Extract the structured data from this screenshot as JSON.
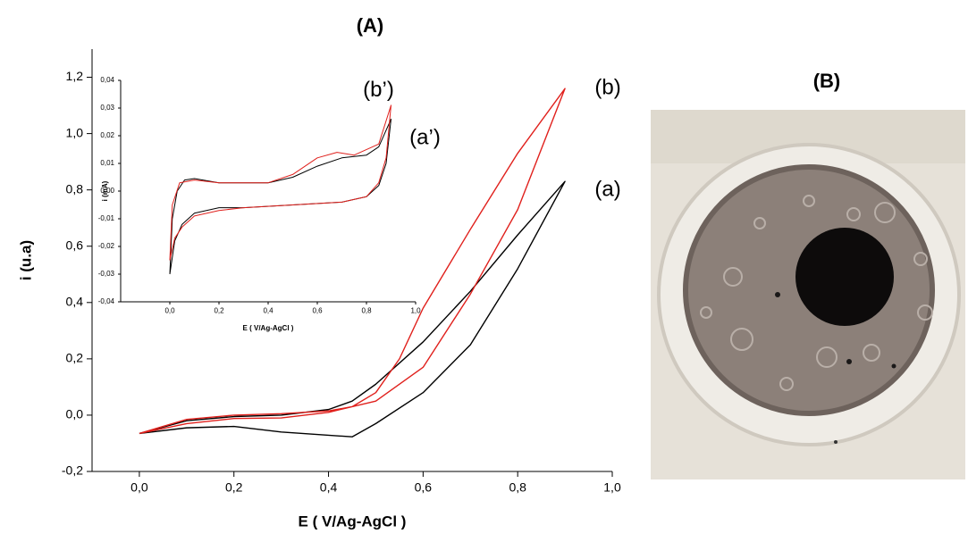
{
  "chart_data": [
    {
      "type": "line",
      "title": "(A)",
      "x_label": "E ( V/Ag-AgCl )",
      "y_label": "i (u.a)",
      "xlim": [
        -0.1,
        1.0
      ],
      "ylim": [
        -0.2,
        1.3
      ],
      "xticks": [
        {
          "value": 0.0,
          "label": "0,0"
        },
        {
          "value": 0.2,
          "label": "0,2"
        },
        {
          "value": 0.4,
          "label": "0,4"
        },
        {
          "value": 0.6,
          "label": "0,6"
        },
        {
          "value": 0.8,
          "label": "0,8"
        },
        {
          "value": 1.0,
          "label": "1,0"
        }
      ],
      "yticks": [
        {
          "value": -0.2,
          "label": "-0,2"
        },
        {
          "value": 0.0,
          "label": "0,0"
        },
        {
          "value": 0.2,
          "label": "0,2"
        },
        {
          "value": 0.4,
          "label": "0,4"
        },
        {
          "value": 0.6,
          "label": "0,6"
        },
        {
          "value": 0.8,
          "label": "0,8"
        },
        {
          "value": 1.0,
          "label": "1,0"
        },
        {
          "value": 1.2,
          "label": "1,2"
        }
      ],
      "series": [
        {
          "name": "(a)",
          "color": "#000000",
          "x": [
            0.0,
            0.1,
            0.2,
            0.3,
            0.4,
            0.45,
            0.5,
            0.6,
            0.7,
            0.8,
            0.9,
            0.8,
            0.7,
            0.6,
            0.5,
            0.45,
            0.3,
            0.2,
            0.1,
            0.0
          ],
          "y": [
            -0.065,
            -0.02,
            -0.005,
            0.0,
            0.02,
            0.05,
            0.11,
            0.26,
            0.44,
            0.64,
            0.83,
            0.52,
            0.25,
            0.08,
            -0.03,
            -0.077,
            -0.06,
            -0.04,
            -0.045,
            -0.065
          ]
        },
        {
          "name": "(b)",
          "color": "#e0201c",
          "x": [
            0.0,
            0.1,
            0.2,
            0.3,
            0.4,
            0.45,
            0.5,
            0.55,
            0.6,
            0.7,
            0.8,
            0.9,
            0.8,
            0.7,
            0.6,
            0.5,
            0.4,
            0.3,
            0.2,
            0.1,
            0.0
          ],
          "y": [
            -0.065,
            -0.015,
            0.0,
            0.005,
            0.015,
            0.03,
            0.08,
            0.2,
            0.38,
            0.66,
            0.93,
            1.16,
            0.73,
            0.43,
            0.17,
            0.05,
            0.01,
            -0.01,
            -0.012,
            -0.03,
            -0.065
          ]
        }
      ]
    },
    {
      "type": "line",
      "x_label": "E ( V/Ag-AgCl )",
      "y_label": "i (mA)",
      "xlim": [
        -0.2,
        1.0
      ],
      "ylim": [
        -0.04,
        0.04
      ],
      "xticks": [
        {
          "value": 0.0,
          "label": "0,0"
        },
        {
          "value": 0.2,
          "label": "0,2"
        },
        {
          "value": 0.4,
          "label": "0,4"
        },
        {
          "value": 0.6,
          "label": "0,6"
        },
        {
          "value": 0.8,
          "label": "0,8"
        },
        {
          "value": 1.0,
          "label": "1,0"
        }
      ],
      "yticks": [
        {
          "value": -0.04,
          "label": "-0,04"
        },
        {
          "value": -0.03,
          "label": "-0,03"
        },
        {
          "value": -0.02,
          "label": "-0,02"
        },
        {
          "value": -0.01,
          "label": "-0,01"
        },
        {
          "value": 0.0,
          "label": "0,00"
        },
        {
          "value": 0.01,
          "label": "0,01"
        },
        {
          "value": 0.02,
          "label": "0,02"
        },
        {
          "value": 0.03,
          "label": "0,03"
        },
        {
          "value": 0.04,
          "label": "0,04"
        }
      ],
      "series": [
        {
          "name": "(a’)",
          "color": "#000000",
          "x": [
            0.0,
            0.01,
            0.03,
            0.06,
            0.1,
            0.2,
            0.4,
            0.5,
            0.6,
            0.7,
            0.8,
            0.85,
            0.9,
            0.88,
            0.85,
            0.8,
            0.7,
            0.5,
            0.3,
            0.2,
            0.1,
            0.05,
            0.02,
            0.0
          ],
          "y": [
            -0.03,
            -0.01,
            0.0,
            0.004,
            0.0045,
            0.003,
            0.003,
            0.005,
            0.009,
            0.012,
            0.013,
            0.016,
            0.026,
            0.01,
            0.002,
            -0.002,
            -0.004,
            -0.005,
            -0.006,
            -0.006,
            -0.008,
            -0.012,
            -0.018,
            -0.03
          ]
        },
        {
          "name": "(b’)",
          "color": "#e0201c",
          "x": [
            0.0,
            0.01,
            0.04,
            0.1,
            0.2,
            0.4,
            0.5,
            0.6,
            0.68,
            0.75,
            0.85,
            0.9,
            0.88,
            0.85,
            0.8,
            0.7,
            0.5,
            0.3,
            0.2,
            0.1,
            0.05,
            0.02,
            0.0
          ],
          "y": [
            -0.025,
            -0.005,
            0.003,
            0.004,
            0.003,
            0.003,
            0.006,
            0.012,
            0.014,
            0.013,
            0.017,
            0.031,
            0.012,
            0.003,
            -0.002,
            -0.004,
            -0.005,
            -0.006,
            -0.007,
            -0.009,
            -0.013,
            -0.017,
            -0.025
          ]
        }
      ]
    }
  ],
  "photo_panel": {
    "title": "(B)"
  }
}
